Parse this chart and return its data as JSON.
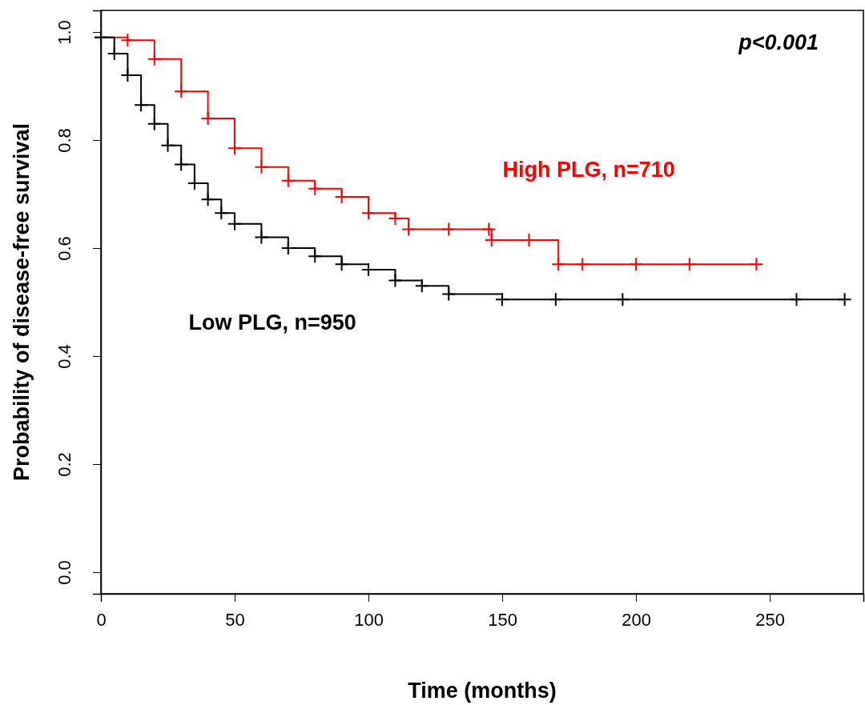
{
  "chart_data": {
    "type": "step",
    "xlabel": "Time (months)",
    "ylabel": "Probability of disease-free survival",
    "annotations": [
      "p<0.001"
    ],
    "xlim": [
      0,
      285
    ],
    "ylim": [
      -0.04,
      1.04
    ],
    "xticks": [
      0,
      50,
      100,
      150,
      200,
      250
    ],
    "yticks": [
      {
        "value": 0,
        "label": "0.0"
      },
      {
        "value": 0.2,
        "label": "0.2"
      },
      {
        "value": 0.4,
        "label": "0.4"
      },
      {
        "value": 0.6,
        "label": "0.6"
      },
      {
        "value": 0.8,
        "label": "0.8"
      },
      {
        "value": 1,
        "label": "1.0"
      }
    ],
    "grid": false,
    "marker": "cross",
    "line_style": "solid",
    "series": [
      {
        "name": "High PLG, n=710",
        "color": "#ff0000",
        "x": [
          0,
          10,
          20,
          30,
          40,
          50,
          60,
          70,
          80,
          90,
          100,
          110,
          115,
          130,
          145,
          146,
          160,
          171,
          180,
          200,
          220,
          245
        ],
        "values": [
          0.99,
          0.985,
          0.95,
          0.89,
          0.84,
          0.785,
          0.75,
          0.725,
          0.71,
          0.695,
          0.665,
          0.655,
          0.635,
          0.635,
          0.635,
          0.615,
          0.615,
          0.57,
          0.57,
          0.57,
          0.57,
          0.57
        ]
      },
      {
        "name": "Low PLG, n=950",
        "color": "#000000",
        "x": [
          0,
          5,
          10,
          15,
          20,
          25,
          30,
          35,
          40,
          45,
          50,
          60,
          70,
          80,
          90,
          100,
          110,
          120,
          130,
          150,
          170,
          195,
          260,
          278
        ],
        "values": [
          0.99,
          0.96,
          0.92,
          0.865,
          0.83,
          0.79,
          0.755,
          0.72,
          0.69,
          0.665,
          0.645,
          0.62,
          0.6,
          0.585,
          0.57,
          0.56,
          0.54,
          0.53,
          0.515,
          0.505,
          0.505,
          0.505,
          0.505,
          0.505
        ]
      }
    ]
  }
}
